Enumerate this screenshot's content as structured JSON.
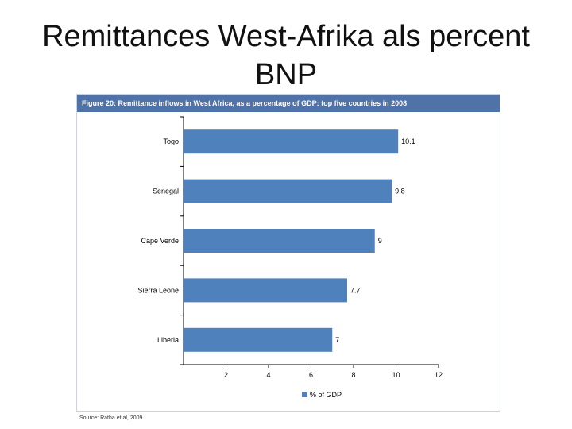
{
  "slide": {
    "title_line1": "Remittances West-Afrika als percent",
    "title_line2": "BNP"
  },
  "figure": {
    "header": "Figure 20: Remittance inflows in West Africa, as a percentage of GDP: top five countries in 2008",
    "source": "Source: Ratha et al, 2009."
  },
  "colors": {
    "bar": "#4f81bd",
    "header_bg": "#4f72a9"
  },
  "chart_data": {
    "type": "bar",
    "orientation": "horizontal",
    "categories": [
      "Togo",
      "Senegal",
      "Cape Verde",
      "Sierra Leone",
      "Liberia"
    ],
    "series": [
      {
        "name": "% of GDP",
        "values": [
          10.1,
          9.8,
          9,
          7.7,
          7
        ]
      }
    ],
    "data_labels": [
      "10.1",
      "9.8",
      "9",
      "7.7",
      "7"
    ],
    "xlim": [
      0,
      12
    ],
    "xticks": [
      2,
      4,
      6,
      8,
      10,
      12
    ],
    "xtick_labels": [
      "2",
      "4",
      "6",
      "8",
      "10",
      "12"
    ],
    "legend": {
      "position": "bottom",
      "entries": [
        "% of GDP"
      ]
    },
    "grid": false
  }
}
